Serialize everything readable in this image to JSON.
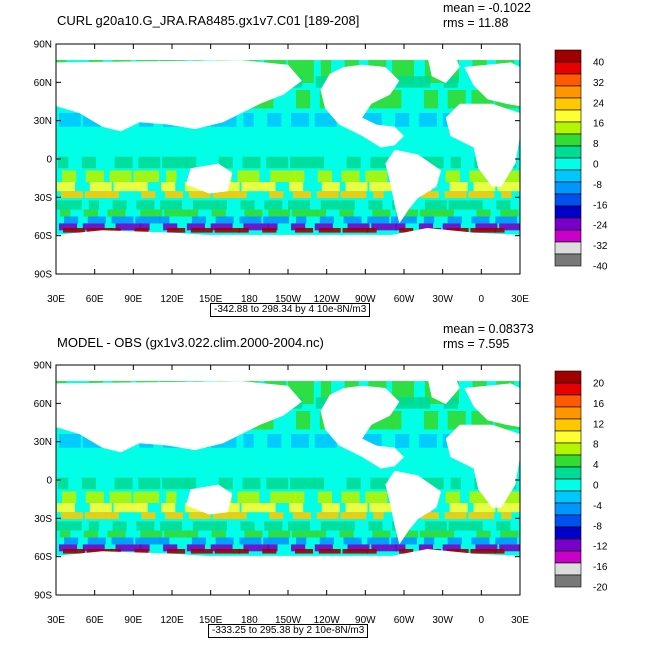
{
  "panels": [
    {
      "title": "CURL g20a10.G_JRA.RA8485.gx1v7.C01 [189-208]",
      "mean_text": "mean = -0.1022",
      "rms_text": "rms = 11.88",
      "range_text": "-342.88 to 298.34 by 4 10e-8N/m3",
      "colorbar_labels": [
        "40",
        "32",
        "24",
        "16",
        "8",
        "0",
        "-8",
        "-16",
        "-24",
        "-32",
        "-40"
      ]
    },
    {
      "title": "MODEL - OBS (gx1v3.022.clim.2000-2004.nc)",
      "mean_text": "mean = 0.08373",
      "rms_text": "rms = 7.595",
      "range_text": "-333.25 to 295.38 by 2 10e-8N/m3",
      "colorbar_labels": [
        "20",
        "16",
        "12",
        "8",
        "4",
        "0",
        "-4",
        "-8",
        "-12",
        "-16",
        "-20"
      ]
    }
  ],
  "axes": {
    "lat_labels": [
      "90N",
      "60N",
      "30N",
      "0",
      "30S",
      "60S",
      "90S"
    ],
    "lon_labels": [
      "30E",
      "60E",
      "90E",
      "120E",
      "150E",
      "180",
      "150W",
      "120W",
      "90W",
      "60W",
      "30W",
      "0",
      "30E"
    ]
  },
  "colorbar_colors": [
    "#a00000",
    "#e60000",
    "#ff5a00",
    "#ff9600",
    "#ffc800",
    "#ffff32",
    "#b4f500",
    "#32dc32",
    "#00dc96",
    "#00ffe6",
    "#00c8ff",
    "#0096ff",
    "#0050f0",
    "#0000c8",
    "#7800c8",
    "#c800c8",
    "#dcdcdc",
    "#787878"
  ]
}
